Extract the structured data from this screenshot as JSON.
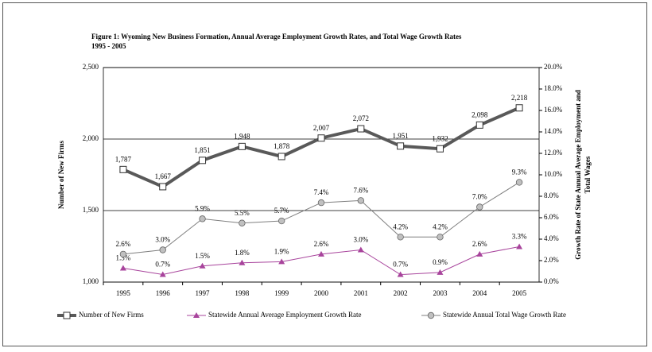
{
  "chart_data": {
    "type": "line",
    "title": [
      "Figure 1: Wyoming New Business Formation, Annual Average Employment Growth Rates, and Total Wage Growth Rates",
      "1995 - 2005"
    ],
    "y_label": "Number of New Firms",
    "y2_label": [
      "Growth Rate of State Annual Average Employment and",
      "Total Wages"
    ],
    "categories": [
      "1995",
      "1996",
      "1997",
      "1998",
      "1999",
      "2000",
      "2001",
      "2002",
      "2003",
      "2004",
      "2005"
    ],
    "ylim": [
      1000,
      2500
    ],
    "yticks": [
      {
        "value": 1000,
        "label": "1,000"
      },
      {
        "value": 1500,
        "label": "1,500"
      },
      {
        "value": 2000,
        "label": "2,000"
      },
      {
        "value": 2500,
        "label": "2,500"
      }
    ],
    "y2lim": [
      0,
      20
    ],
    "y2ticks": [
      {
        "value": 0,
        "label": "0.0%"
      },
      {
        "value": 2,
        "label": "2.0%"
      },
      {
        "value": 4,
        "label": "4.0%"
      },
      {
        "value": 6,
        "label": "6.0%"
      },
      {
        "value": 8,
        "label": "8.0%"
      },
      {
        "value": 10,
        "label": "10.0%"
      },
      {
        "value": 12,
        "label": "12.0%"
      },
      {
        "value": 14,
        "label": "14.0%"
      },
      {
        "value": 16,
        "label": "16.0%"
      },
      {
        "value": 18,
        "label": "18.0%"
      },
      {
        "value": 20,
        "label": "20.0%"
      }
    ],
    "grid": true,
    "legend": "bottom",
    "series": [
      {
        "name": "Number of New Firms",
        "color": "#595959",
        "marker": "square",
        "values": [
          1787,
          1667,
          1851,
          1948,
          1878,
          2007,
          2072,
          1951,
          1932,
          2098,
          2218
        ],
        "value_labels": [
          "1,787",
          "1,667",
          "1,851",
          "1,948",
          "1,878",
          "2,007",
          "2,072",
          "1,951",
          "1,932",
          "2,098",
          "2,218"
        ]
      },
      {
        "name": "Statewide Annual Average Employment Growth Rate",
        "color": "#a8449c",
        "marker": "triangle",
        "axis": "y2",
        "values": [
          1.3,
          0.7,
          1.5,
          1.8,
          1.9,
          2.6,
          3.0,
          0.7,
          0.9,
          2.6,
          3.3
        ],
        "value_labels": [
          "1.3%",
          "0.7%",
          "1.5%",
          "1.8%",
          "1.9%",
          "2.6%",
          "3.0%",
          "0.7%",
          "0.9%",
          "2.6%",
          "3.3%"
        ]
      },
      {
        "name": "Statewide Annual Total Wage Growth Rate",
        "color": "#7f7f7f",
        "marker": "circle",
        "axis": "y2",
        "values": [
          2.6,
          3.0,
          5.9,
          5.5,
          5.7,
          7.4,
          7.6,
          4.2,
          4.2,
          7.0,
          9.3
        ],
        "value_labels": [
          "2.6%",
          "3.0%",
          "5.9%",
          "5.5%",
          "5.7%",
          "7.4%",
          "7.6%",
          "4.2%",
          "4.2%",
          "7.0%",
          "9.3%"
        ]
      }
    ]
  }
}
